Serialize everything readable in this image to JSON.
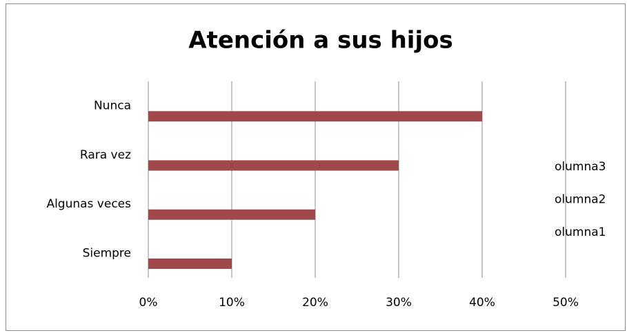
{
  "chart_data": {
    "type": "bar",
    "orientation": "horizontal",
    "title": "Atención a sus hijos",
    "categories": [
      "Siempre",
      "Algunas veces",
      "Rara vez",
      "Nunca"
    ],
    "series": [
      {
        "name": "olumna1",
        "color": "#a0484a",
        "values": [
          10,
          20,
          30,
          40
        ]
      },
      {
        "name": "olumna2",
        "color": "#4f81bd",
        "values": [
          null,
          null,
          null,
          null
        ]
      },
      {
        "name": "olumna3",
        "color": "#9bbb59",
        "values": [
          null,
          null,
          null,
          null
        ]
      }
    ],
    "xlim": [
      0,
      50
    ],
    "xticks": [
      {
        "value": 0,
        "label": "0%"
      },
      {
        "value": 10,
        "label": "10%"
      },
      {
        "value": 20,
        "label": "20%"
      },
      {
        "value": 30,
        "label": "30%"
      },
      {
        "value": 40,
        "label": "40%"
      },
      {
        "value": 50,
        "label": "50%"
      }
    ],
    "grid": true,
    "legend": "right"
  }
}
